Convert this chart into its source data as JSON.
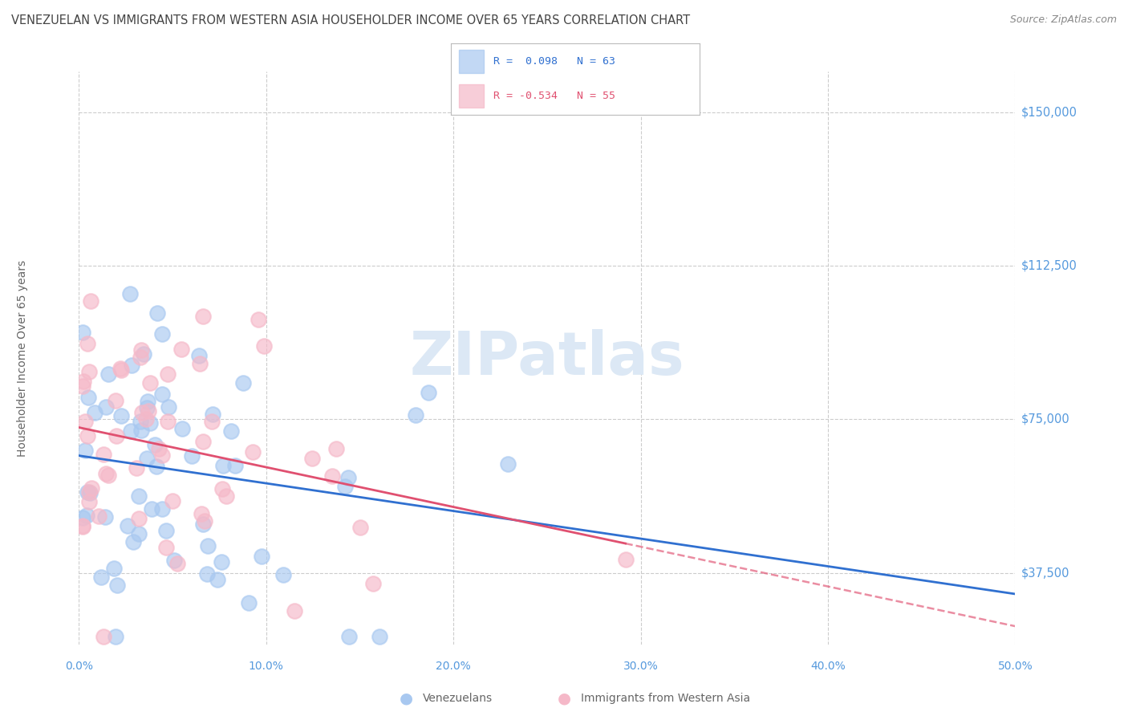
{
  "title": "VENEZUELAN VS IMMIGRANTS FROM WESTERN ASIA HOUSEHOLDER INCOME OVER 65 YEARS CORRELATION CHART",
  "source": "Source: ZipAtlas.com",
  "ylabel": "Householder Income Over 65 years",
  "xlabel_ticks": [
    "0.0%",
    "10.0%",
    "20.0%",
    "30.0%",
    "40.0%",
    "50.0%"
  ],
  "xlabel_vals": [
    0.0,
    0.1,
    0.2,
    0.3,
    0.4,
    0.5
  ],
  "ylabel_ticks": [
    "$37,500",
    "$75,000",
    "$112,500",
    "$150,000"
  ],
  "ylabel_vals": [
    37500,
    75000,
    112500,
    150000
  ],
  "xlim": [
    0.0,
    0.5
  ],
  "ylim": [
    20000,
    160000
  ],
  "blue_R": 0.098,
  "blue_N": 63,
  "pink_R": -0.534,
  "pink_N": 55,
  "blue_color": "#a8c8f0",
  "pink_color": "#f5b8c8",
  "blue_line_color": "#3070d0",
  "pink_line_color": "#e05070",
  "watermark": "ZIPatlas",
  "watermark_color": "#dce8f5",
  "background": "#ffffff",
  "grid_color": "#cccccc",
  "tick_label_color": "#5599dd",
  "title_color": "#444444",
  "source_color": "#888888",
  "ylabel_label_color": "#666666",
  "legend_border_color": "#bbbbbb",
  "bottom_legend_color": "#666666",
  "seed": 7
}
